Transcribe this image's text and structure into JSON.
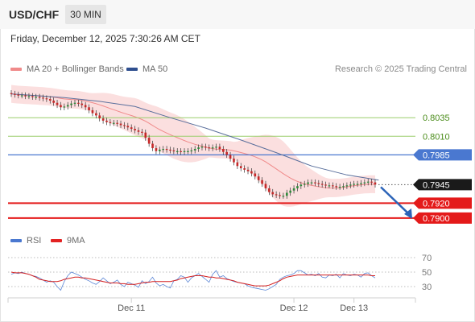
{
  "header": {
    "symbol": "USD/CHF",
    "timeframe": "30 MIN"
  },
  "timestamp": "Friday, December 12, 2025 7:30:26 AM CET",
  "credit": "Research © 2025 Trading Central",
  "legend": [
    {
      "label": "MA 20 + Bollinger Bands",
      "color": "#f08a8a"
    },
    {
      "label": "MA 50",
      "color": "#2f4f8f"
    }
  ],
  "rsi_legend": [
    {
      "label": "RSI",
      "color": "#4a78d0"
    },
    {
      "label": "9MA",
      "color": "#e32222"
    }
  ],
  "colors": {
    "up": "#2e8b3a",
    "down": "#c62828",
    "support": "#e41a1a",
    "resistance": "#9acd6a",
    "pivot": "#4a78d0",
    "current": "#1a1a1a"
  },
  "chart_data": [
    {
      "type": "candlestick",
      "pair": "USD/CHF",
      "interval": "30 MIN",
      "ylim": [
        0.7888,
        0.8085
      ],
      "levels": [
        {
          "label": "0.8035",
          "value": 0.8035,
          "kind": "resistance"
        },
        {
          "label": "0.8010",
          "value": 0.801,
          "kind": "resistance"
        },
        {
          "label": "0.7985",
          "value": 0.7985,
          "kind": "pivot"
        },
        {
          "label": "0.7945",
          "value": 0.7945,
          "kind": "current"
        },
        {
          "label": "0.7920",
          "value": 0.792,
          "kind": "support"
        },
        {
          "label": "0.7900",
          "value": 0.79,
          "kind": "support"
        }
      ],
      "close": [
        0.8067,
        0.8066,
        0.8065,
        0.8065,
        0.8064,
        0.8064,
        0.8063,
        0.8063,
        0.8062,
        0.8061,
        0.806,
        0.8058,
        0.8055,
        0.8052,
        0.8049,
        0.805,
        0.8052,
        0.8054,
        0.8055,
        0.8054,
        0.8052,
        0.8049,
        0.8045,
        0.8041,
        0.8038,
        0.8034,
        0.8031,
        0.8029,
        0.8028,
        0.8028,
        0.8027,
        0.8025,
        0.8024,
        0.8022,
        0.802,
        0.8018,
        0.8016,
        0.8015,
        0.8008,
        0.8,
        0.7994,
        0.799,
        0.7992,
        0.7993,
        0.7992,
        0.7991,
        0.799,
        0.799,
        0.7989,
        0.799,
        0.799,
        0.7991,
        0.7993,
        0.7995,
        0.7996,
        0.7995,
        0.7994,
        0.7995,
        0.7996,
        0.7993,
        0.7989,
        0.7985,
        0.798,
        0.7975,
        0.797,
        0.7967,
        0.7965,
        0.7963,
        0.796,
        0.7956,
        0.7951,
        0.7946,
        0.794,
        0.7935,
        0.7932,
        0.7931,
        0.793,
        0.793,
        0.7934,
        0.7937,
        0.794,
        0.7943,
        0.7945,
        0.7946,
        0.7948,
        0.7948,
        0.7947,
        0.7946,
        0.7945,
        0.7944,
        0.7944,
        0.7943,
        0.7942,
        0.7942,
        0.7943,
        0.7944,
        0.7945,
        0.7946,
        0.7946,
        0.7947,
        0.7948,
        0.7949,
        0.7948,
        0.7945
      ],
      "ma50": [
        [
          0,
          0.8067
        ],
        [
          15,
          0.8062
        ],
        [
          25,
          0.8057
        ],
        [
          35,
          0.805
        ],
        [
          45,
          0.8035
        ],
        [
          55,
          0.8021
        ],
        [
          65,
          0.8005
        ],
        [
          75,
          0.7988
        ],
        [
          85,
          0.797
        ],
        [
          95,
          0.7958
        ],
        [
          104,
          0.7951
        ]
      ],
      "x_ticks": [
        {
          "label": "Dec 11",
          "index": 34
        },
        {
          "label": "Dec 12",
          "index": 80
        },
        {
          "label": "Dec 13",
          "index": 97
        }
      ],
      "projection": {
        "from": 0.7945,
        "to": 0.79
      }
    },
    {
      "type": "line",
      "name": "RSI panel",
      "ylim": [
        20,
        80
      ],
      "y_ticks": [
        70,
        50,
        30
      ],
      "rsi": [
        47,
        49,
        48,
        50,
        48,
        47,
        45,
        44,
        42,
        39,
        36,
        38,
        36,
        30,
        25,
        37,
        45,
        50,
        48,
        46,
        43,
        40,
        38,
        35,
        33,
        37,
        42,
        38,
        34,
        36,
        39,
        33,
        30,
        36,
        34,
        32,
        29,
        38,
        34,
        37,
        43,
        35,
        31,
        33,
        30,
        28,
        38,
        40,
        45,
        43,
        36,
        42,
        45,
        48,
        44,
        40,
        36,
        47,
        52,
        43,
        45,
        41,
        39,
        37,
        36,
        35,
        34,
        31,
        29,
        28,
        27,
        26,
        25,
        27,
        30,
        33,
        40,
        43,
        45,
        46,
        48,
        52,
        52,
        49,
        46,
        47,
        45,
        48,
        43,
        42,
        46,
        45,
        47,
        42,
        48,
        46,
        45,
        47,
        46,
        43,
        48,
        49,
        45,
        42
      ],
      "ma9": [
        50,
        49,
        49,
        49,
        48,
        47,
        45,
        43,
        40,
        39,
        38,
        37,
        37,
        37,
        38,
        40,
        41,
        42,
        43,
        43,
        42,
        42,
        41,
        40,
        39,
        38,
        37,
        36,
        35,
        35,
        35,
        34,
        34,
        33,
        33,
        33,
        34,
        35,
        36,
        36,
        37,
        37,
        37,
        37,
        37,
        37,
        38,
        39,
        41,
        42,
        43,
        44,
        45,
        45,
        45,
        44,
        43,
        43,
        42,
        42,
        41,
        40,
        39,
        38,
        36,
        35,
        34,
        33,
        32,
        31,
        31,
        31,
        31,
        32,
        34,
        36,
        38,
        41,
        43,
        44,
        45,
        46,
        46,
        46,
        46,
        46,
        46,
        46,
        46,
        46,
        46,
        46,
        46,
        46,
        46,
        46,
        46,
        46,
        46,
        46,
        46,
        46,
        45,
        45
      ]
    }
  ]
}
